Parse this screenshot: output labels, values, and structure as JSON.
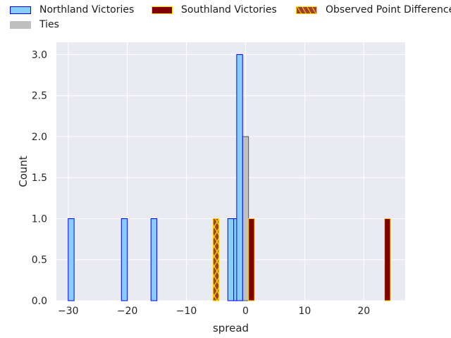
{
  "chart_data": {
    "type": "bar",
    "title": "",
    "xlabel": "spread",
    "ylabel": "Count",
    "xlim": [
      -32,
      27
    ],
    "ylim": [
      0,
      3.15
    ],
    "x_ticks": [
      -30,
      -20,
      -10,
      0,
      10,
      20
    ],
    "x_tick_labels": [
      "−30",
      "−20",
      "−10",
      "0",
      "10",
      "20"
    ],
    "y_ticks": [
      0,
      0.5,
      1,
      1.5,
      2,
      2.5,
      3
    ],
    "y_tick_labels": [
      "0.0",
      "0.5",
      "1.0",
      "1.5",
      "2.0",
      "2.5",
      "3.0"
    ],
    "grid": true,
    "legend_position": "top",
    "bin_width": 1,
    "series": [
      {
        "name": "Northland Victories",
        "fill": "#87cefa",
        "edge": "#0000ff",
        "bins": [
          {
            "x0": -30,
            "count": 1
          },
          {
            "x0": -21,
            "count": 1
          },
          {
            "x0": -16,
            "count": 1
          },
          {
            "x0": -3,
            "count": 1
          },
          {
            "x0": -2,
            "count": 1
          },
          {
            "x0": -1.5,
            "count": 3
          }
        ]
      },
      {
        "name": "Southland Victories",
        "fill": "#800000",
        "edge": "#ffd700",
        "bins": [
          {
            "x0": 0.5,
            "count": 1
          },
          {
            "x0": 23.5,
            "count": 1
          }
        ]
      },
      {
        "name": "Ties",
        "fill": "#c0c0c0",
        "edge": "#555555",
        "bins": [
          {
            "x0": -0.5,
            "count": 2
          }
        ]
      },
      {
        "name": "Observed Point Difference",
        "fill": "#a0422a",
        "edge": "#ffd700",
        "hatch": true,
        "bins": [
          {
            "x0": -5.5,
            "count": 1
          }
        ]
      }
    ],
    "legend": [
      {
        "name": "Northland Victories",
        "fill": "#87cefa",
        "edge": "#0000ff"
      },
      {
        "name": "Southland Victories",
        "fill": "#800000",
        "edge": "#ffd700"
      },
      {
        "name": "Observed Point Difference",
        "fill": "#a0422a",
        "edge": "#ffd700",
        "hatch": true
      },
      {
        "name": "Ties",
        "fill": "#c0c0c0",
        "edge": "#c0c0c0"
      }
    ],
    "colors": {
      "plot_background": "#eaeaf2",
      "grid": "#ffffff"
    }
  }
}
